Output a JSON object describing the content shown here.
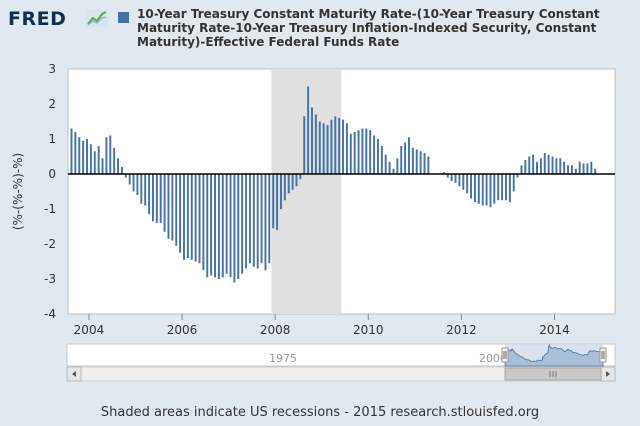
{
  "header": {
    "logo": "FRED",
    "logo_icon": "trend-line-icon",
    "legend_label": "10-Year Treasury Constant Maturity Rate-(10-Year Treasury Constant Maturity Rate-10-Year Treasury Inflation-Indexed Security, Constant Maturity)-Effective Federal Funds Rate"
  },
  "navigator": {
    "label_left": "1975",
    "label_right": "2000",
    "scroll_left_icon": "arrow-left-icon",
    "scroll_right_icon": "arrow-right-icon",
    "grip_icon": "grip-icon"
  },
  "footer": {
    "note": "Shaded areas indicate US recessions - 2015 research.stlouisfed.org"
  },
  "colors": {
    "bar": "#4572a7",
    "recession": "#e0e0e0",
    "navigator_fill": "#a9bfd8"
  },
  "chart_data": {
    "type": "bar",
    "ylabel": "(%-(%-%)-%)",
    "ylim": [
      -4,
      3
    ],
    "yticks": [
      "3",
      "2",
      "1",
      "0",
      "-1",
      "-2",
      "-3",
      "-4"
    ],
    "xticks": [
      "2004",
      "2006",
      "2008",
      "2010",
      "2012",
      "2014"
    ],
    "xlim": [
      2003.55,
      2015.3
    ],
    "recession": [
      2007.92,
      2009.42
    ],
    "x_start": 2003.625,
    "x_step": 0.08333,
    "values": [
      1.3,
      1.2,
      1.05,
      0.95,
      1.0,
      0.85,
      0.65,
      0.8,
      0.45,
      1.05,
      1.1,
      0.75,
      0.45,
      0.2,
      -0.1,
      -0.3,
      -0.5,
      -0.6,
      -0.85,
      -0.9,
      -1.15,
      -1.35,
      -1.4,
      -1.4,
      -1.65,
      -1.85,
      -1.9,
      -2.05,
      -2.25,
      -2.45,
      -2.4,
      -2.45,
      -2.5,
      -2.55,
      -2.75,
      -2.95,
      -2.9,
      -2.95,
      -3.0,
      -2.95,
      -2.85,
      -2.95,
      -3.1,
      -3.0,
      -2.85,
      -2.7,
      -2.55,
      -2.65,
      -2.7,
      -2.55,
      -2.75,
      -2.55,
      -1.55,
      -1.6,
      -1.0,
      -0.75,
      -0.55,
      -0.45,
      -0.35,
      -0.15,
      1.65,
      2.5,
      1.9,
      1.7,
      1.5,
      1.45,
      1.4,
      1.55,
      1.65,
      1.6,
      1.55,
      1.45,
      1.15,
      1.2,
      1.25,
      1.3,
      1.3,
      1.25,
      1.1,
      1.0,
      0.8,
      0.55,
      0.35,
      0.15,
      0.45,
      0.8,
      0.9,
      1.05,
      0.75,
      0.7,
      0.65,
      0.6,
      0.5,
      0.0,
      0.0,
      0.0,
      0.05,
      -0.1,
      -0.2,
      -0.25,
      -0.35,
      -0.45,
      -0.55,
      -0.7,
      -0.8,
      -0.85,
      -0.9,
      -0.9,
      -0.95,
      -0.85,
      -0.75,
      -0.75,
      -0.75,
      -0.8,
      -0.5,
      -0.1,
      0.25,
      0.4,
      0.5,
      0.55,
      0.35,
      0.45,
      0.6,
      0.55,
      0.5,
      0.45,
      0.45,
      0.35,
      0.25,
      0.25,
      0.15,
      0.35,
      0.3,
      0.3,
      0.35,
      0.15
    ]
  }
}
